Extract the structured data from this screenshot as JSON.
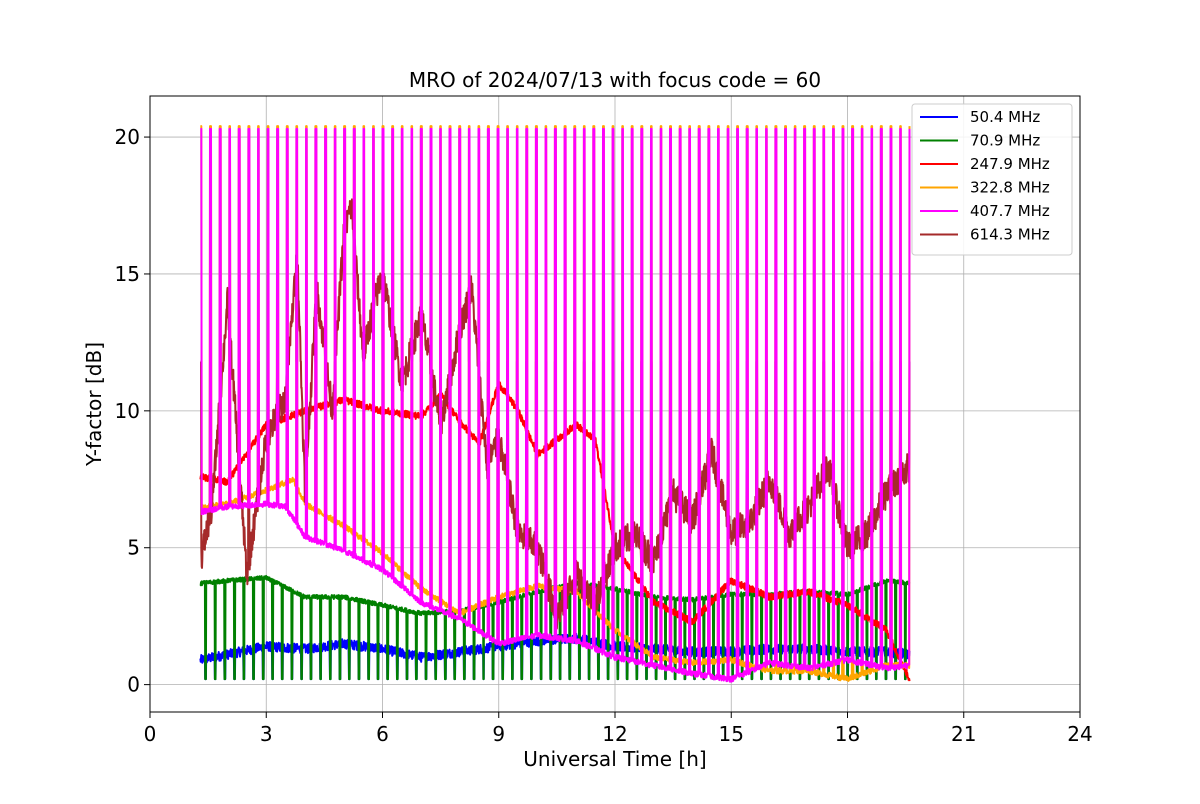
{
  "chart_data": {
    "type": "line",
    "title": "MRO of 2024/07/13 with focus code = 60",
    "xlabel": "Universal Time [h]",
    "ylabel": "Y-factor [dB]",
    "xlim": [
      0,
      24
    ],
    "ylim": [
      -1,
      21.5
    ],
    "xticks": [
      0,
      3,
      6,
      9,
      12,
      15,
      18,
      21,
      24
    ],
    "yticks": [
      0,
      5,
      10,
      15,
      20
    ],
    "grid": true,
    "legend_position": "top-right",
    "x_range_data": [
      1.3,
      19.6
    ],
    "series": [
      {
        "name": " 50.4 MHz",
        "color": "#0000ff",
        "x": [
          1.3,
          2,
          3,
          4,
          5,
          6,
          7,
          8,
          9,
          10,
          11,
          12,
          13,
          14,
          15,
          16,
          17,
          18,
          19,
          19.6
        ],
        "y": [
          0.9,
          1.1,
          1.4,
          1.3,
          1.5,
          1.3,
          1.0,
          1.2,
          1.4,
          1.6,
          1.7,
          1.4,
          1.3,
          1.2,
          1.2,
          1.3,
          1.3,
          1.2,
          1.2,
          1.1
        ]
      },
      {
        "name": " 70.9 MHz",
        "color": "#008000",
        "x": [
          1.3,
          2,
          3,
          4,
          5,
          6,
          7,
          8,
          9,
          10,
          11,
          12,
          13,
          14,
          15,
          16,
          17,
          18,
          19,
          19.6
        ],
        "y": [
          3.7,
          3.8,
          3.9,
          3.2,
          3.2,
          2.9,
          2.6,
          2.7,
          3.0,
          3.4,
          3.7,
          3.5,
          3.2,
          3.1,
          3.3,
          3.3,
          3.4,
          3.3,
          3.8,
          3.7
        ]
      },
      {
        "name": "247.9 MHz",
        "color": "#ff0000",
        "x": [
          1.3,
          2,
          3,
          4,
          5,
          6,
          7,
          7.5,
          8,
          8.5,
          9,
          9.5,
          10,
          11,
          11.5,
          12,
          13,
          14,
          15,
          16,
          17,
          18,
          19,
          19.6
        ],
        "y": [
          7.6,
          7.4,
          9.5,
          10.0,
          10.4,
          10.0,
          9.8,
          10.6,
          9.6,
          8.8,
          11.0,
          10.0,
          8.4,
          9.5,
          8.9,
          5.0,
          3.0,
          2.3,
          3.8,
          3.2,
          3.4,
          2.9,
          2.0,
          0.2
        ]
      },
      {
        "name": "322.8 MHz",
        "color": "#ffa500",
        "x": [
          1.3,
          2,
          3,
          3.7,
          4,
          5,
          6,
          7,
          8,
          9,
          10,
          11,
          12,
          13,
          14,
          15,
          16,
          17,
          18,
          19,
          19.6
        ],
        "y": [
          6.5,
          6.6,
          7.1,
          7.5,
          6.6,
          5.8,
          4.8,
          3.5,
          2.6,
          3.2,
          3.6,
          3.4,
          2.0,
          1.0,
          0.8,
          0.9,
          0.5,
          0.5,
          0.2,
          0.7,
          0.7
        ]
      },
      {
        "name": "407.7 MHz",
        "color": "#ff00ff",
        "x": [
          1.3,
          2,
          3,
          3.5,
          4,
          5,
          6,
          7,
          8,
          9,
          10,
          11,
          12,
          13,
          14,
          15,
          16,
          17,
          18,
          19,
          19.6
        ],
        "y": [
          6.3,
          6.5,
          6.6,
          6.5,
          5.4,
          4.9,
          4.2,
          3.0,
          2.4,
          1.5,
          1.8,
          1.6,
          1.0,
          0.7,
          0.4,
          0.2,
          0.8,
          0.6,
          0.9,
          0.6,
          0.7
        ],
        "spike_peak": 20.3
      },
      {
        "name": "614.3 MHz",
        "color": "#a52a2a",
        "x": [
          1.3,
          1.6,
          2,
          2.5,
          3,
          3.5,
          3.8,
          4,
          4.3,
          4.7,
          5,
          5.2,
          5.5,
          5.8,
          6,
          6.5,
          7,
          7.5,
          8,
          8.3,
          8.7,
          9,
          9.5,
          10,
          10.5,
          11,
          11.5,
          12,
          12.5,
          13,
          13.5,
          14,
          14.5,
          15,
          15.5,
          16,
          16.5,
          17,
          17.5,
          18,
          18.5,
          19,
          19.6
        ],
        "y": [
          4.5,
          6.5,
          14.0,
          4.0,
          9.0,
          10.5,
          15.8,
          7.0,
          14.5,
          10.0,
          16.5,
          17.5,
          12.0,
          14.0,
          15.0,
          11.0,
          13.5,
          9.5,
          13.0,
          14.5,
          8.0,
          9.0,
          5.5,
          5.0,
          2.5,
          4.0,
          3.0,
          5.0,
          5.5,
          4.5,
          7.0,
          6.0,
          8.5,
          5.5,
          6.0,
          7.5,
          5.5,
          6.5,
          8.0,
          5.0,
          5.5,
          7.0,
          8.0
        ]
      }
    ]
  }
}
